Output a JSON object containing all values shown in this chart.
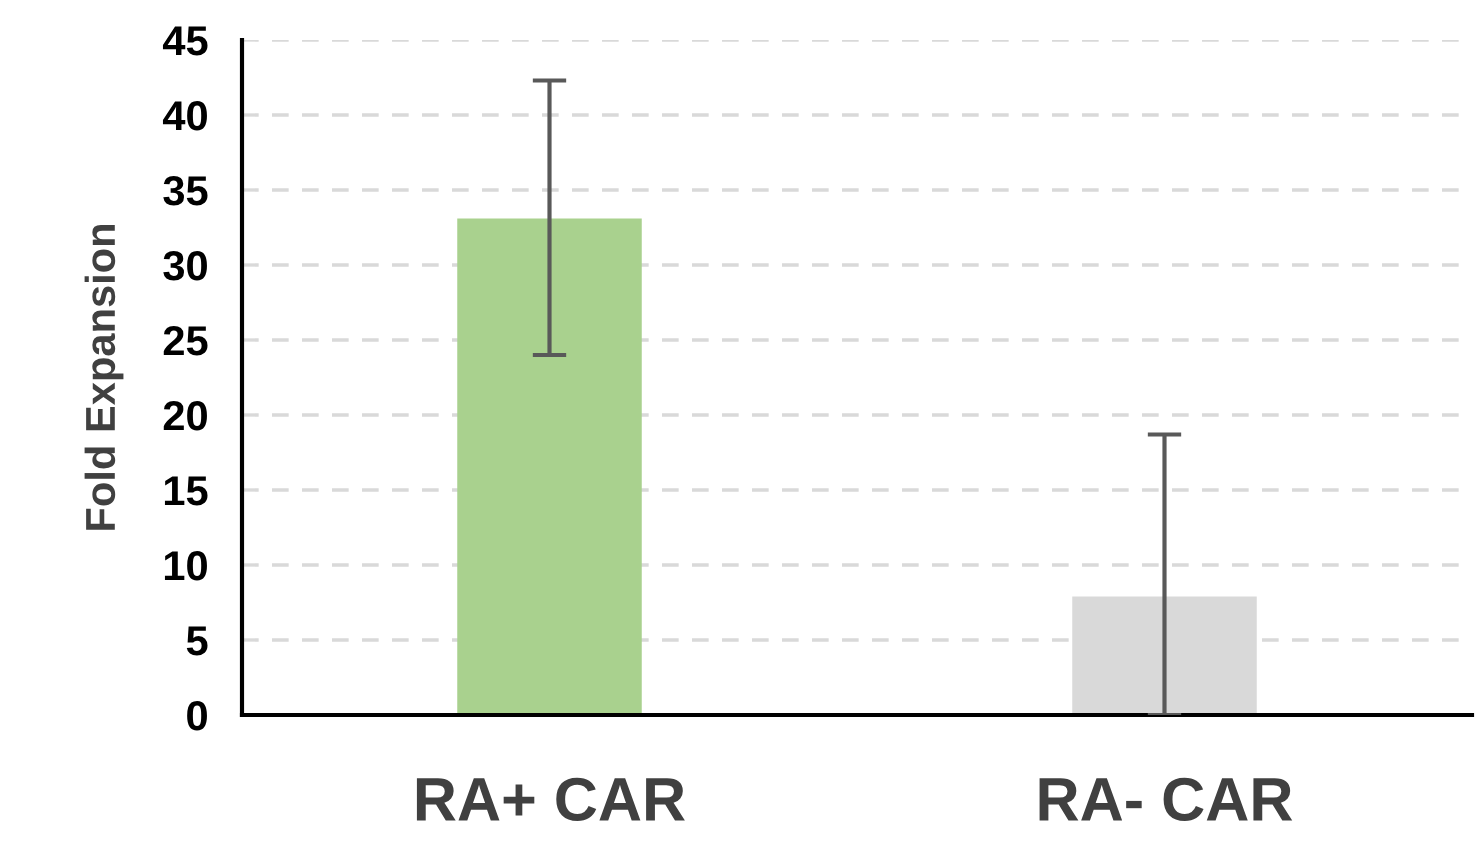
{
  "chart_data": {
    "type": "bar",
    "ylabel": "Fold Expansion",
    "categories": [
      "RA+ CAR",
      "RA- CAR"
    ],
    "values": [
      33.1,
      7.9
    ],
    "colors": [
      "#a9d18e",
      "#d9d9d9"
    ],
    "errors": [
      [
        24.0,
        42.3
      ],
      [
        0,
        18.7
      ]
    ],
    "ylim": [
      0,
      45
    ],
    "yticks": [
      0,
      5,
      10,
      15,
      20,
      25,
      30,
      35,
      40,
      45
    ],
    "grid": "y"
  }
}
